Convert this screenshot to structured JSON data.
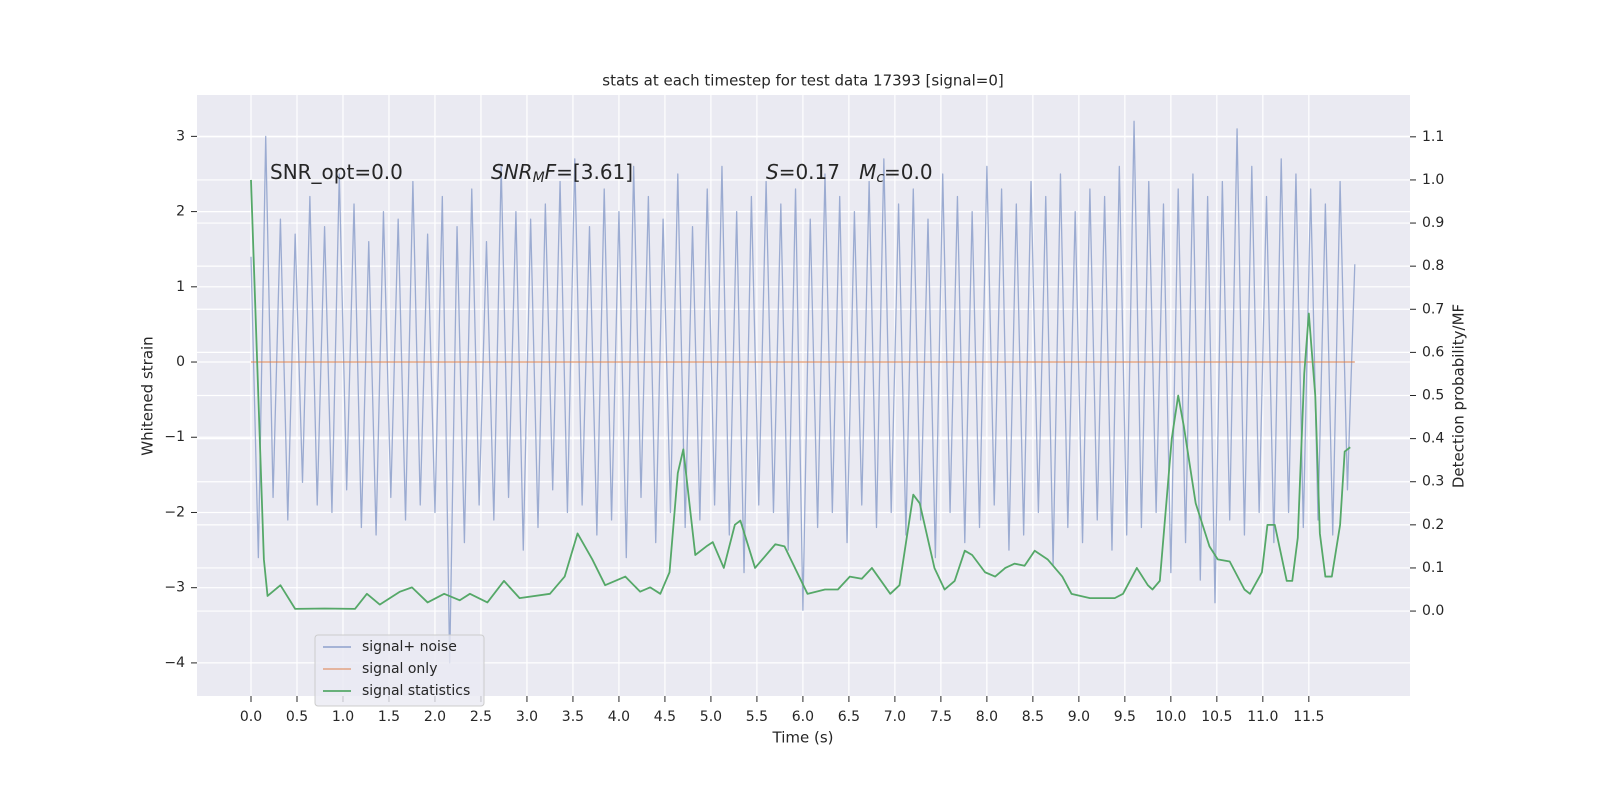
{
  "chart_data": {
    "type": "line",
    "title": "stats at each timestep for test data 17393 [signal=0]",
    "xlabel": "Time (s)",
    "ylabel": "Whitened strain",
    "y2label": "Detection probability/MF",
    "background": "#eaeaf2",
    "grid": true,
    "legend": "lower left",
    "xlim": [
      -0.587,
      12.6
    ],
    "xticks": [
      {
        "value": 0,
        "label": "0.0"
      },
      0.5,
      {
        "value": 1,
        "label": "1.0"
      },
      1.5,
      {
        "value": 2,
        "label": "2.0"
      },
      2.5,
      {
        "value": 3,
        "label": "3.0"
      },
      3.5,
      {
        "value": 4,
        "label": "4.0"
      },
      4.5,
      {
        "value": 5,
        "label": "5.0"
      },
      5.5,
      {
        "value": 6,
        "label": "6.0"
      },
      6.5,
      {
        "value": 7,
        "label": "7.0"
      },
      7.5,
      {
        "value": 8,
        "label": "8.0"
      },
      8.5,
      {
        "value": 9,
        "label": "9.0"
      },
      9.5,
      {
        "value": 10,
        "label": "10.0"
      },
      10.5,
      {
        "value": 11,
        "label": "11.0"
      },
      11.5
    ],
    "ylim": [
      -4.44,
      3.55
    ],
    "yticks": [
      {
        "value": -4,
        "label": "−4"
      },
      {
        "value": -3,
        "label": "−3"
      },
      {
        "value": -2,
        "label": "−2"
      },
      {
        "value": -1,
        "label": "−1"
      },
      0,
      1,
      2,
      3
    ],
    "y2lim": [
      -0.197,
      1.197
    ],
    "y2ticks": [
      {
        "value": 0,
        "label": "0.0"
      },
      0.1,
      0.2,
      0.3,
      0.4,
      0.5,
      0.6,
      0.7,
      0.8,
      0.9,
      {
        "value": 1,
        "label": "1.0"
      },
      1.1
    ],
    "annotations": [
      [
        {
          "text": "SNR_opt=0.0"
        }
      ],
      [
        {
          "text": "SNR",
          "style": "italic"
        },
        {
          "text": "M",
          "style": "sub"
        },
        {
          "text": "F",
          "style": "italic"
        },
        {
          "text": "=[3.61]"
        }
      ],
      [
        {
          "text": "S",
          "style": "italic"
        },
        {
          "text": "=0.17   "
        },
        {
          "text": "M",
          "style": "italic"
        },
        {
          "text": "c",
          "style": "sub"
        },
        {
          "text": "=0.0"
        }
      ]
    ],
    "series": [
      {
        "name": "signal+ noise",
        "color": "#8da0cb",
        "opacity": 0.85,
        "x": [
          0,
          0.08,
          0.16,
          0.24,
          0.32,
          0.4,
          0.48,
          0.56,
          0.64,
          0.72,
          0.8,
          0.88,
          0.96,
          1.04,
          1.12,
          1.2,
          1.28,
          1.36,
          1.44,
          1.52,
          1.6,
          1.68,
          1.76,
          1.84,
          1.92,
          2,
          2.08,
          2.16,
          2.24,
          2.32,
          2.4,
          2.48,
          2.56,
          2.64,
          2.72,
          2.8,
          2.88,
          2.96,
          3.04,
          3.12,
          3.2,
          3.28,
          3.36,
          3.44,
          3.52,
          3.6,
          3.68,
          3.76,
          3.84,
          3.92,
          4,
          4.08,
          4.16,
          4.24,
          4.32,
          4.4,
          4.48,
          4.56,
          4.64,
          4.72,
          4.8,
          4.88,
          4.96,
          5.04,
          5.12,
          5.2,
          5.28,
          5.36,
          5.44,
          5.52,
          5.6,
          5.68,
          5.76,
          5.84,
          5.92,
          6,
          6.08,
          6.16,
          6.24,
          6.32,
          6.4,
          6.48,
          6.56,
          6.64,
          6.72,
          6.8,
          6.88,
          6.96,
          7.04,
          7.12,
          7.2,
          7.28,
          7.36,
          7.44,
          7.52,
          7.6,
          7.68,
          7.76,
          7.84,
          7.92,
          8,
          8.08,
          8.16,
          8.24,
          8.32,
          8.4,
          8.48,
          8.56,
          8.64,
          8.72,
          8.8,
          8.88,
          8.96,
          9.04,
          9.12,
          9.2,
          9.28,
          9.36,
          9.44,
          9.52,
          9.6,
          9.68,
          9.76,
          9.84,
          9.92,
          10,
          10.08,
          10.16,
          10.24,
          10.32,
          10.4,
          10.48,
          10.56,
          10.64,
          10.72,
          10.8,
          10.88,
          10.96,
          11.04,
          11.12,
          11.2,
          11.28,
          11.36,
          11.44,
          11.52,
          11.6,
          11.68,
          11.76,
          11.84,
          11.92,
          12
        ],
        "values": [
          1.4,
          -2.6,
          3.0,
          -1.8,
          1.9,
          -2.1,
          1.7,
          -1.6,
          2.2,
          -1.9,
          1.8,
          -2.0,
          2.5,
          -1.7,
          2.1,
          -2.2,
          1.6,
          -2.3,
          2.0,
          -1.8,
          1.9,
          -2.1,
          2.4,
          -1.9,
          1.7,
          -2.0,
          2.2,
          -4.0,
          1.8,
          -2.4,
          2.3,
          -1.9,
          1.6,
          -2.1,
          2.6,
          -1.8,
          2.0,
          -2.5,
          1.9,
          -2.2,
          2.1,
          -1.7,
          2.4,
          -2.0,
          2.7,
          -1.9,
          1.8,
          -2.3,
          2.3,
          -2.1,
          2.0,
          -2.6,
          2.6,
          -1.8,
          2.2,
          -2.4,
          1.9,
          -2.0,
          2.5,
          -2.2,
          1.8,
          -2.1,
          2.3,
          -1.9,
          2.6,
          -2.3,
          2.0,
          -2.8,
          2.2,
          -1.9,
          2.4,
          -2.0,
          2.1,
          -2.5,
          2.3,
          -3.3,
          1.9,
          -2.2,
          2.5,
          -2.0,
          2.2,
          -2.4,
          2.0,
          -1.9,
          2.4,
          -2.2,
          2.7,
          -2.0,
          2.1,
          -2.3,
          2.3,
          -2.1,
          1.9,
          -2.6,
          2.5,
          -2.0,
          2.2,
          -2.4,
          2.0,
          -2.2,
          2.6,
          -1.9,
          2.3,
          -2.5,
          2.1,
          -2.3,
          2.4,
          -2.0,
          2.2,
          -2.7,
          2.5,
          -2.2,
          2.0,
          -2.4,
          2.3,
          -2.1,
          2.2,
          -2.5,
          2.6,
          -2.3,
          3.2,
          -2.2,
          2.4,
          -2.0,
          2.1,
          -2.8,
          2.3,
          -2.4,
          2.5,
          -2.9,
          2.2,
          -3.2,
          2.4,
          -2.1,
          3.1,
          -2.3,
          2.6,
          -2.0,
          2.2,
          -2.4,
          2.7,
          -2.0,
          2.5,
          -2.2,
          2.3,
          -2.1,
          2.1,
          -2.3,
          2.4,
          -1.7,
          1.3
        ]
      },
      {
        "name": "signal only",
        "color": "#dd8452",
        "opacity": 0.6,
        "x": [
          0,
          12
        ],
        "values": [
          0,
          0
        ]
      },
      {
        "name": "signal statistics",
        "color": "#55a868",
        "opacity": 1,
        "axis": "y2",
        "x": [
          0,
          0.14,
          0.18,
          0.32,
          0.48,
          0.8,
          1.13,
          1.26,
          1.4,
          1.62,
          1.75,
          1.92,
          2.1,
          2.27,
          2.38,
          2.57,
          2.75,
          2.92,
          3.25,
          3.41,
          3.55,
          3.71,
          3.85,
          4.07,
          4.23,
          4.34,
          4.45,
          4.55,
          4.64,
          4.7,
          4.83,
          4.95,
          5.02,
          5.14,
          5.26,
          5.32,
          5.48,
          5.7,
          5.8,
          6.05,
          6.24,
          6.38,
          6.51,
          6.64,
          6.75,
          6.95,
          7.05,
          7.2,
          7.27,
          7.43,
          7.54,
          7.65,
          7.76,
          7.84,
          7.98,
          8.09,
          8.2,
          8.3,
          8.41,
          8.52,
          8.66,
          8.82,
          8.92,
          9.12,
          9.39,
          9.48,
          9.63,
          9.75,
          9.8,
          9.88,
          10.01,
          10.08,
          10.14,
          10.27,
          10.42,
          10.51,
          10.64,
          10.8,
          10.86,
          10.99,
          11.05,
          11.13,
          11.26,
          11.32,
          11.38,
          11.45,
          11.5,
          11.57,
          11.62,
          11.68,
          11.75,
          11.84,
          11.89,
          11.95
        ],
        "values": [
          1.0,
          0.12,
          0.035,
          0.06,
          0.005,
          0.006,
          0.005,
          0.04,
          0.015,
          0.045,
          0.055,
          0.02,
          0.04,
          0.025,
          0.04,
          0.02,
          0.07,
          0.03,
          0.04,
          0.08,
          0.18,
          0.12,
          0.06,
          0.08,
          0.045,
          0.055,
          0.04,
          0.09,
          0.32,
          0.375,
          0.13,
          0.15,
          0.16,
          0.1,
          0.2,
          0.21,
          0.1,
          0.155,
          0.15,
          0.04,
          0.05,
          0.05,
          0.08,
          0.075,
          0.1,
          0.04,
          0.06,
          0.27,
          0.25,
          0.1,
          0.05,
          0.07,
          0.14,
          0.13,
          0.09,
          0.08,
          0.1,
          0.11,
          0.105,
          0.14,
          0.12,
          0.08,
          0.04,
          0.03,
          0.03,
          0.04,
          0.1,
          0.06,
          0.05,
          0.07,
          0.4,
          0.5,
          0.43,
          0.25,
          0.15,
          0.12,
          0.115,
          0.05,
          0.04,
          0.09,
          0.2,
          0.2,
          0.07,
          0.07,
          0.17,
          0.55,
          0.69,
          0.5,
          0.18,
          0.08,
          0.08,
          0.2,
          0.37,
          0.38
        ]
      }
    ]
  }
}
